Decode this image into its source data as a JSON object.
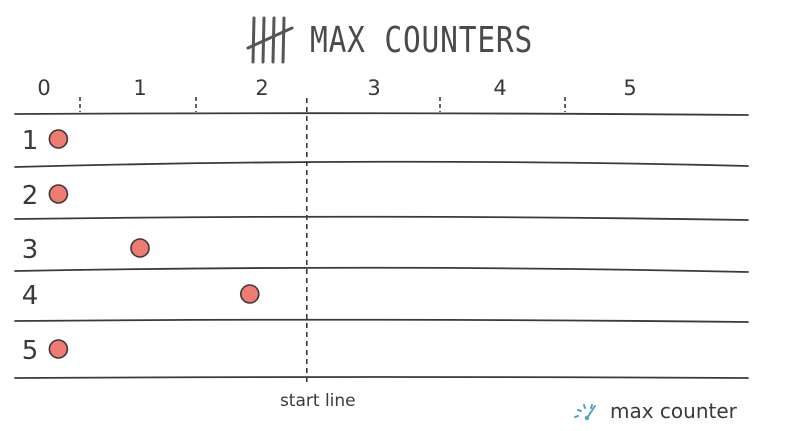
{
  "title": "MAX COUNTERS",
  "columns": [
    "0",
    "1",
    "2",
    "3",
    "4",
    "5"
  ],
  "rows": [
    {
      "label": "1",
      "value": 0.15
    },
    {
      "label": "2",
      "value": 0.15
    },
    {
      "label": "3",
      "value": 1.0
    },
    {
      "label": "4",
      "value": 1.9
    },
    {
      "label": "5",
      "value": 0.15
    }
  ],
  "start_line": {
    "label": "start line",
    "value": 2.4
  },
  "legend": {
    "label": "max counter",
    "icon": "speedometer-icon"
  },
  "colors": {
    "marker": "#f07b73",
    "ink": "#3a3a3a",
    "legend_icon": "#4fa3c7"
  }
}
